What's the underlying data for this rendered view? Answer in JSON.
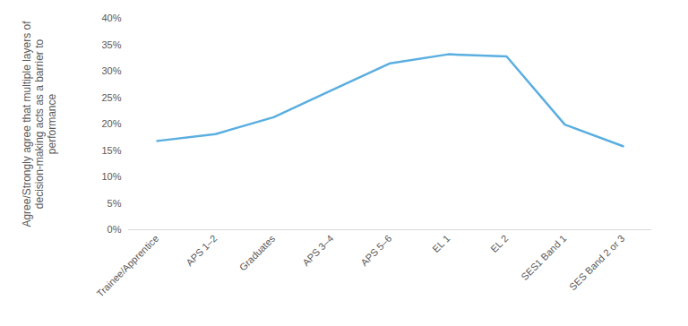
{
  "chart_data": {
    "type": "line",
    "ylabel": "Agree/Strongly agree that multiple layers of decision-making acts as a barrier to performance",
    "categories": [
      "Trainee/Apprentice",
      "APS 1–2",
      "Graduates",
      "APS 3–4",
      "APS 5–6",
      "EL 1",
      "EL 2",
      "SES1 Band 1",
      "SES Band 2 or 3"
    ],
    "values": [
      16.8,
      18.1,
      21.3,
      26.4,
      31.5,
      33.2,
      32.8,
      19.9,
      15.8
    ],
    "color": "#5aaee0",
    "ylim": [
      0,
      40
    ],
    "yticks": [
      {
        "value": 0,
        "label": "0%"
      },
      {
        "value": 5,
        "label": "5%"
      },
      {
        "value": 10,
        "label": "10%"
      },
      {
        "value": 15,
        "label": "15%"
      },
      {
        "value": 20,
        "label": "20%"
      },
      {
        "value": 25,
        "label": "25%"
      },
      {
        "value": 30,
        "label": "30%"
      },
      {
        "value": 35,
        "label": "35%"
      },
      {
        "value": 40,
        "label": "40%"
      }
    ],
    "grid": false
  }
}
